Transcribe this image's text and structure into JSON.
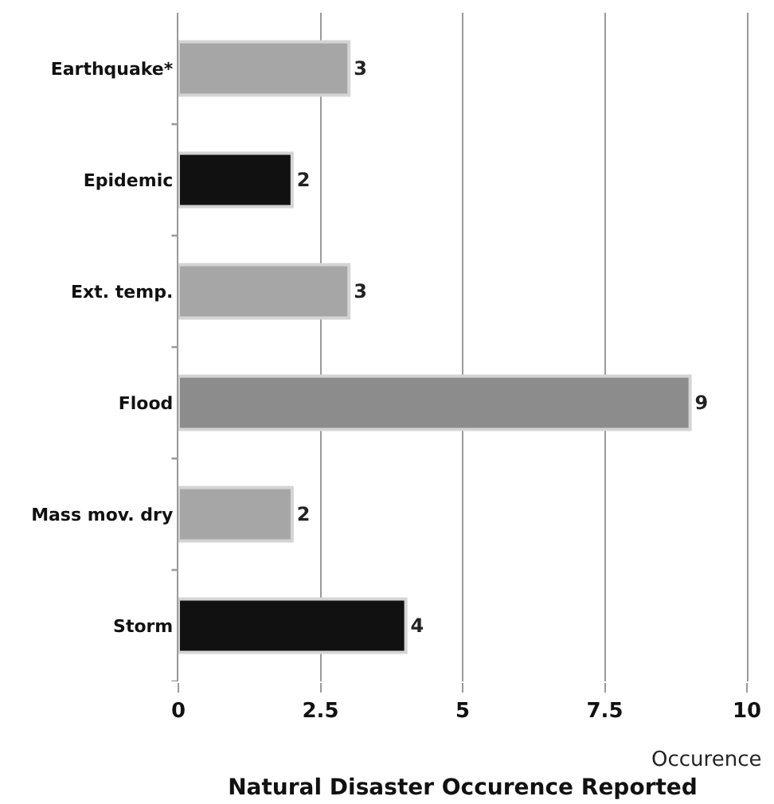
{
  "chart_data": {
    "type": "bar",
    "orientation": "horizontal",
    "title": "Natural Disaster Occurence Reported",
    "xlabel": "Occurence",
    "categories": [
      "Earthquake*",
      "Epidemic",
      "Ext. temp.",
      "Flood",
      "Mass mov. dry",
      "Storm"
    ],
    "values": [
      3,
      2,
      3,
      9,
      2,
      4
    ],
    "colors": [
      "#a6a6a6",
      "#111111",
      "#a6a6a6",
      "#8c8c8c",
      "#a6a6a6",
      "#111111"
    ],
    "xlim": [
      0,
      10
    ],
    "xticks": [
      0,
      2.5,
      5,
      7.5,
      10
    ],
    "grid": "x",
    "data_labels": true
  }
}
